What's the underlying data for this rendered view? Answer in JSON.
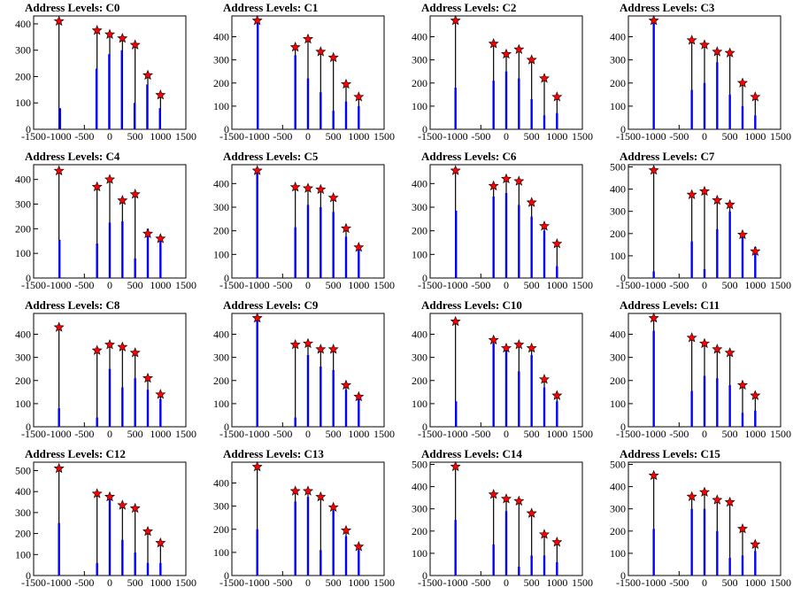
{
  "chart_data": [
    {
      "type": "bar",
      "title": "Address Levels: C0",
      "xlim": [
        -1500,
        1500
      ],
      "ylim": [
        0,
        430
      ],
      "yticks": [
        0,
        100,
        200,
        300,
        400
      ],
      "xticks": [
        -1500,
        -1000,
        -500,
        0,
        500,
        1000,
        1500
      ],
      "x_tick_labels": [
        "-1500",
        "-1000",
        "-500",
        "0",
        "500",
        "1000",
        "1500"
      ],
      "peaks_x": [
        -1000,
        -250,
        0,
        250,
        500,
        750,
        1000
      ],
      "peaks": [
        410,
        375,
        360,
        345,
        320,
        205,
        130
      ],
      "blue_bars": [
        [
          -980,
          80
        ],
        [
          -260,
          230
        ],
        [
          -10,
          285
        ],
        [
          240,
          300
        ],
        [
          490,
          100
        ],
        [
          740,
          170
        ],
        [
          990,
          80
        ]
      ]
    },
    {
      "type": "bar",
      "title": "Address Levels: C1",
      "xlim": [
        -1500,
        1500
      ],
      "ylim": [
        0,
        490
      ],
      "yticks": [
        0,
        100,
        200,
        300,
        400
      ],
      "xticks": [
        -1500,
        -1000,
        -500,
        0,
        500,
        1000,
        1500
      ],
      "x_tick_labels": [
        "-1500",
        "-1000",
        "-500",
        "0",
        "500",
        "1000",
        "1500"
      ],
      "peaks_x": [
        -1000,
        -250,
        0,
        250,
        500,
        750,
        1000
      ],
      "peaks": [
        470,
        355,
        390,
        335,
        310,
        195,
        140
      ],
      "blue_bars": [
        [
          -990,
          470
        ],
        [
          -250,
          320
        ],
        [
          0,
          220
        ],
        [
          250,
          160
        ],
        [
          500,
          80
        ],
        [
          750,
          120
        ],
        [
          1000,
          100
        ]
      ]
    },
    {
      "type": "bar",
      "title": "Address Levels: C2",
      "xlim": [
        -1500,
        1500
      ],
      "ylim": [
        0,
        490
      ],
      "yticks": [
        0,
        100,
        200,
        300,
        400
      ],
      "xticks": [
        -1500,
        -1000,
        -500,
        0,
        500,
        1000,
        1500
      ],
      "x_tick_labels": [
        "-1500",
        "-1000",
        "-500",
        "0",
        "500",
        "1000",
        "1500"
      ],
      "peaks_x": [
        -1000,
        -250,
        0,
        250,
        500,
        750,
        1000
      ],
      "peaks": [
        470,
        370,
        325,
        345,
        300,
        220,
        140
      ],
      "blue_bars": [
        [
          -1000,
          180
        ],
        [
          -250,
          210
        ],
        [
          0,
          250
        ],
        [
          250,
          220
        ],
        [
          500,
          130
        ],
        [
          750,
          60
        ],
        [
          1000,
          70
        ]
      ]
    },
    {
      "type": "bar",
      "title": "Address Levels: C3",
      "xlim": [
        -1500,
        1500
      ],
      "ylim": [
        0,
        490
      ],
      "yticks": [
        0,
        100,
        200,
        300,
        400
      ],
      "xticks": [
        -1500,
        -1000,
        -500,
        0,
        500,
        1000,
        1500
      ],
      "x_tick_labels": [
        "-1500",
        "-1000",
        "-500",
        "0",
        "500",
        "1000",
        "1500"
      ],
      "peaks_x": [
        -1000,
        -250,
        0,
        250,
        500,
        750,
        1000
      ],
      "peaks": [
        470,
        385,
        365,
        335,
        330,
        200,
        140
      ],
      "blue_bars": [
        [
          -1000,
          470
        ],
        [
          -250,
          170
        ],
        [
          0,
          200
        ],
        [
          250,
          290
        ],
        [
          500,
          150
        ],
        [
          750,
          100
        ],
        [
          1000,
          60
        ]
      ]
    },
    {
      "type": "bar",
      "title": "Address Levels: C4",
      "xlim": [
        -1500,
        1500
      ],
      "ylim": [
        0,
        460
      ],
      "yticks": [
        0,
        100,
        200,
        300,
        400
      ],
      "xticks": [
        -1500,
        -1000,
        -500,
        0,
        500,
        1000,
        1500
      ],
      "x_tick_labels": [
        "-1500",
        "-1000",
        "-500",
        "0",
        "500",
        "1000",
        "1500"
      ],
      "peaks_x": [
        -1000,
        -250,
        0,
        250,
        500,
        750,
        1000
      ],
      "peaks": [
        435,
        370,
        400,
        315,
        340,
        180,
        160
      ],
      "blue_bars": [
        [
          -990,
          155
        ],
        [
          -250,
          140
        ],
        [
          0,
          225
        ],
        [
          250,
          230
        ],
        [
          500,
          80
        ],
        [
          750,
          200
        ],
        [
          1000,
          160
        ]
      ]
    },
    {
      "type": "bar",
      "title": "Address Levels: C5",
      "xlim": [
        -1500,
        1500
      ],
      "ylim": [
        0,
        480
      ],
      "yticks": [
        0,
        100,
        200,
        300,
        400
      ],
      "xticks": [
        -1500,
        -1000,
        -500,
        0,
        500,
        1000,
        1500
      ],
      "x_tick_labels": [
        "-1500",
        "-1000",
        "-500",
        "0",
        "500",
        "1000",
        "1500"
      ],
      "peaks_x": [
        -1000,
        -250,
        0,
        250,
        500,
        750,
        1000
      ],
      "peaks": [
        455,
        385,
        380,
        375,
        340,
        210,
        130
      ],
      "blue_bars": [
        [
          -1000,
          455
        ],
        [
          -250,
          215
        ],
        [
          0,
          310
        ],
        [
          250,
          300
        ],
        [
          500,
          280
        ],
        [
          750,
          175
        ],
        [
          1000,
          120
        ]
      ]
    },
    {
      "type": "bar",
      "title": "Address Levels: C6",
      "xlim": [
        -1500,
        1500
      ],
      "ylim": [
        0,
        480
      ],
      "yticks": [
        0,
        100,
        200,
        300,
        400
      ],
      "xticks": [
        -1500,
        -1000,
        -500,
        0,
        500,
        1000,
        1500
      ],
      "x_tick_labels": [
        "-1500",
        "-1000",
        "-500",
        "0",
        "500",
        "1000",
        "1500"
      ],
      "peaks_x": [
        -1000,
        -250,
        0,
        250,
        500,
        750,
        1000
      ],
      "peaks": [
        455,
        390,
        420,
        410,
        320,
        220,
        145
      ],
      "blue_bars": [
        [
          -990,
          285
        ],
        [
          -250,
          345
        ],
        [
          0,
          360
        ],
        [
          250,
          310
        ],
        [
          500,
          260
        ],
        [
          750,
          200
        ],
        [
          1000,
          50
        ]
      ]
    },
    {
      "type": "bar",
      "title": "Address Levels: C7",
      "xlim": [
        -1500,
        1500
      ],
      "ylim": [
        0,
        510
      ],
      "yticks": [
        0,
        100,
        200,
        300,
        400,
        500
      ],
      "xticks": [
        -1500,
        -1000,
        -500,
        0,
        500,
        1000,
        1500
      ],
      "x_tick_labels": [
        "-1500",
        "-1000",
        "-500",
        "0",
        "500",
        "1000",
        "1500"
      ],
      "peaks_x": [
        -1000,
        -250,
        0,
        250,
        500,
        750,
        1000
      ],
      "peaks": [
        485,
        375,
        390,
        350,
        330,
        195,
        120
      ],
      "blue_bars": [
        [
          -1000,
          30
        ],
        [
          -250,
          165
        ],
        [
          0,
          40
        ],
        [
          250,
          220
        ],
        [
          500,
          300
        ],
        [
          750,
          210
        ],
        [
          1000,
          140
        ]
      ]
    },
    {
      "type": "bar",
      "title": "Address Levels: C8",
      "xlim": [
        -1500,
        1500
      ],
      "ylim": [
        0,
        490
      ],
      "yticks": [
        0,
        100,
        200,
        300,
        400
      ],
      "xticks": [
        -1500,
        -1000,
        -500,
        0,
        500,
        1000,
        1500
      ],
      "x_tick_labels": [
        "-1500",
        "-1000",
        "-500",
        "0",
        "500",
        "1000",
        "1500"
      ],
      "peaks_x": [
        -1000,
        -250,
        0,
        250,
        500,
        750,
        1000
      ],
      "peaks": [
        430,
        330,
        355,
        345,
        320,
        210,
        140
      ],
      "blue_bars": [
        [
          -1000,
          80
        ],
        [
          -250,
          40
        ],
        [
          0,
          250
        ],
        [
          250,
          170
        ],
        [
          500,
          210
        ],
        [
          750,
          160
        ],
        [
          1000,
          120
        ]
      ]
    },
    {
      "type": "bar",
      "title": "Address Levels: C9",
      "xlim": [
        -1500,
        1500
      ],
      "ylim": [
        0,
        490
      ],
      "yticks": [
        0,
        100,
        200,
        300,
        400
      ],
      "xticks": [
        -1500,
        -1000,
        -500,
        0,
        500,
        1000,
        1500
      ],
      "x_tick_labels": [
        "-1500",
        "-1000",
        "-500",
        "0",
        "500",
        "1000",
        "1500"
      ],
      "peaks_x": [
        -1000,
        -250,
        0,
        250,
        500,
        750,
        1000
      ],
      "peaks": [
        470,
        355,
        360,
        335,
        335,
        180,
        130
      ],
      "blue_bars": [
        [
          -1000,
          470
        ],
        [
          -250,
          40
        ],
        [
          0,
          310
        ],
        [
          250,
          260
        ],
        [
          500,
          245
        ],
        [
          750,
          160
        ],
        [
          1000,
          120
        ]
      ]
    },
    {
      "type": "bar",
      "title": "Address Levels: C10",
      "xlim": [
        -1500,
        1500
      ],
      "ylim": [
        0,
        490
      ],
      "yticks": [
        0,
        100,
        200,
        300,
        400
      ],
      "xticks": [
        -1500,
        -1000,
        -500,
        0,
        500,
        1000,
        1500
      ],
      "x_tick_labels": [
        "-1500",
        "-1000",
        "-500",
        "0",
        "500",
        "1000",
        "1500"
      ],
      "peaks_x": [
        -1000,
        -250,
        0,
        250,
        500,
        750,
        1000
      ],
      "peaks": [
        455,
        375,
        340,
        355,
        340,
        205,
        135
      ],
      "blue_bars": [
        [
          -990,
          110
        ],
        [
          -250,
          360
        ],
        [
          0,
          330
        ],
        [
          250,
          240
        ],
        [
          500,
          310
        ],
        [
          750,
          170
        ],
        [
          1000,
          110
        ]
      ]
    },
    {
      "type": "bar",
      "title": "Address Levels: C11",
      "xlim": [
        -1500,
        1500
      ],
      "ylim": [
        0,
        490
      ],
      "yticks": [
        0,
        100,
        200,
        300,
        400
      ],
      "xticks": [
        -1500,
        -1000,
        -500,
        0,
        500,
        1000,
        1500
      ],
      "x_tick_labels": [
        "-1500",
        "-1000",
        "-500",
        "0",
        "500",
        "1000",
        "1500"
      ],
      "peaks_x": [
        -1000,
        -250,
        0,
        250,
        500,
        750,
        1000
      ],
      "peaks": [
        470,
        385,
        360,
        335,
        320,
        180,
        135
      ],
      "blue_bars": [
        [
          -1000,
          415
        ],
        [
          -250,
          155
        ],
        [
          0,
          220
        ],
        [
          250,
          210
        ],
        [
          500,
          180
        ],
        [
          750,
          60
        ],
        [
          1000,
          70
        ]
      ]
    },
    {
      "type": "bar",
      "title": "Address Levels: C12",
      "xlim": [
        -1500,
        1500
      ],
      "ylim": [
        0,
        540
      ],
      "yticks": [
        0,
        100,
        200,
        300,
        400,
        500
      ],
      "xticks": [
        -1500,
        -1000,
        -500,
        0,
        500,
        1000,
        1500
      ],
      "x_tick_labels": [
        "-1500",
        "-1000",
        "-500",
        "0",
        "500",
        "1000",
        "1500"
      ],
      "peaks_x": [
        -1000,
        -250,
        0,
        250,
        500,
        750,
        1000
      ],
      "peaks": [
        510,
        390,
        375,
        335,
        320,
        210,
        155
      ],
      "blue_bars": [
        [
          -1000,
          250
        ],
        [
          -250,
          60
        ],
        [
          0,
          360
        ],
        [
          250,
          170
        ],
        [
          500,
          110
        ],
        [
          750,
          60
        ],
        [
          1000,
          60
        ]
      ]
    },
    {
      "type": "bar",
      "title": "Address Levels: C13",
      "xlim": [
        -1500,
        1500
      ],
      "ylim": [
        0,
        490
      ],
      "yticks": [
        0,
        100,
        200,
        300,
        400
      ],
      "xticks": [
        -1500,
        -1000,
        -500,
        0,
        500,
        1000,
        1500
      ],
      "x_tick_labels": [
        "-1500",
        "-1000",
        "-500",
        "0",
        "500",
        "1000",
        "1500"
      ],
      "peaks_x": [
        -1000,
        -250,
        0,
        250,
        500,
        750,
        1000
      ],
      "peaks": [
        470,
        365,
        365,
        340,
        295,
        195,
        125
      ],
      "blue_bars": [
        [
          -1000,
          200
        ],
        [
          -250,
          320
        ],
        [
          0,
          340
        ],
        [
          250,
          110
        ],
        [
          500,
          280
        ],
        [
          750,
          170
        ],
        [
          1000,
          110
        ]
      ]
    },
    {
      "type": "bar",
      "title": "Address Levels: C14",
      "xlim": [
        -1500,
        1500
      ],
      "ylim": [
        0,
        510
      ],
      "yticks": [
        0,
        100,
        200,
        300,
        400,
        500
      ],
      "xticks": [
        -1500,
        -1000,
        -500,
        0,
        500,
        1000,
        1500
      ],
      "x_tick_labels": [
        "-1500",
        "-1000",
        "-500",
        "0",
        "500",
        "1000",
        "1500"
      ],
      "peaks_x": [
        -1000,
        -250,
        0,
        250,
        500,
        750,
        1000
      ],
      "peaks": [
        490,
        365,
        345,
        335,
        280,
        185,
        150
      ],
      "blue_bars": [
        [
          -1000,
          250
        ],
        [
          -250,
          140
        ],
        [
          0,
          290
        ],
        [
          250,
          40
        ],
        [
          500,
          90
        ],
        [
          750,
          90
        ],
        [
          1000,
          60
        ]
      ]
    },
    {
      "type": "bar",
      "title": "Address Levels: C15",
      "xlim": [
        -1500,
        1500
      ],
      "ylim": [
        0,
        510
      ],
      "yticks": [
        0,
        100,
        200,
        300,
        400,
        500
      ],
      "xticks": [
        -1500,
        -1000,
        -500,
        0,
        500,
        1000,
        1500
      ],
      "x_tick_labels": [
        "-1500",
        "-1000",
        "-500",
        "0",
        "500",
        "1000",
        "1500"
      ],
      "peaks_x": [
        -1000,
        -250,
        0,
        250,
        500,
        750,
        1000
      ],
      "peaks": [
        450,
        355,
        375,
        340,
        330,
        210,
        140
      ],
      "blue_bars": [
        [
          -1000,
          210
        ],
        [
          -250,
          300
        ],
        [
          0,
          300
        ],
        [
          250,
          200
        ],
        [
          500,
          80
        ],
        [
          750,
          90
        ],
        [
          1000,
          110
        ]
      ]
    }
  ],
  "colors": {
    "histogram_outline": "#000000",
    "histogram_fill": "#0000ff",
    "marker": "#ff0000",
    "marker_edge": "#000000"
  }
}
